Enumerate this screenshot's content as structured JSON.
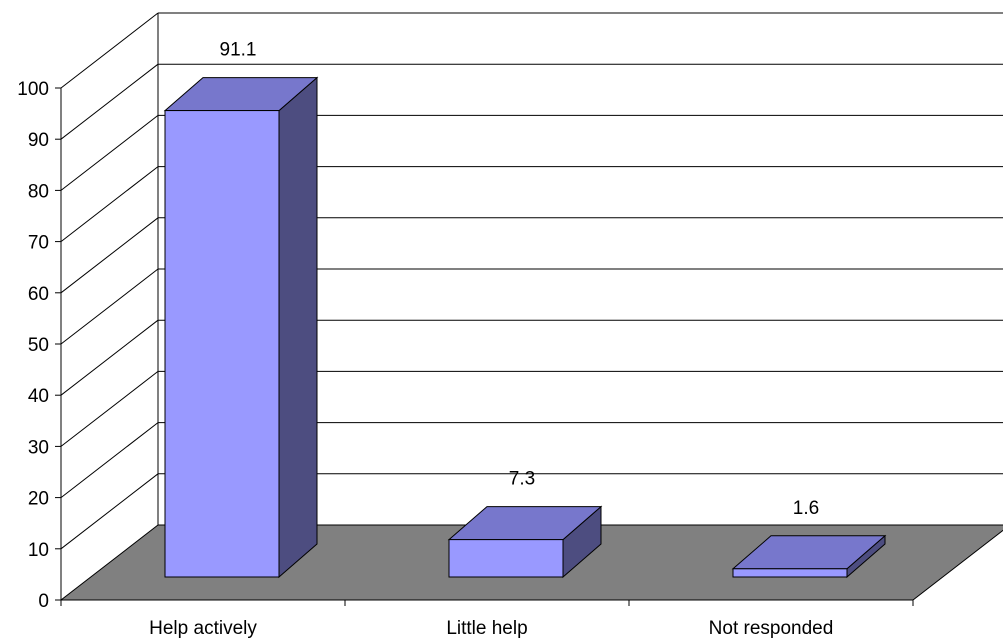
{
  "chart_data": {
    "type": "bar",
    "style": "3d-column",
    "title": "",
    "xlabel": "",
    "ylabel": "",
    "categories": [
      "Help actively",
      "Little help",
      "Not responded"
    ],
    "values": [
      91.1,
      7.3,
      1.6
    ],
    "data_labels": [
      "91.1",
      "7.3",
      "1.6"
    ],
    "ylim": [
      0,
      100
    ],
    "yticks": [
      0,
      10,
      20,
      30,
      40,
      50,
      60,
      70,
      80,
      90,
      100
    ],
    "ytick_labels": [
      "0",
      "10",
      "20",
      "30",
      "40",
      "50",
      "60",
      "70",
      "80",
      "90",
      "100"
    ],
    "grid": true,
    "legend": "none",
    "colors": {
      "bar_front": "#9999ff",
      "bar_top": "#7777cc",
      "bar_side": "#4d4d80",
      "floor": "#808080",
      "gridline": "#000000"
    }
  }
}
